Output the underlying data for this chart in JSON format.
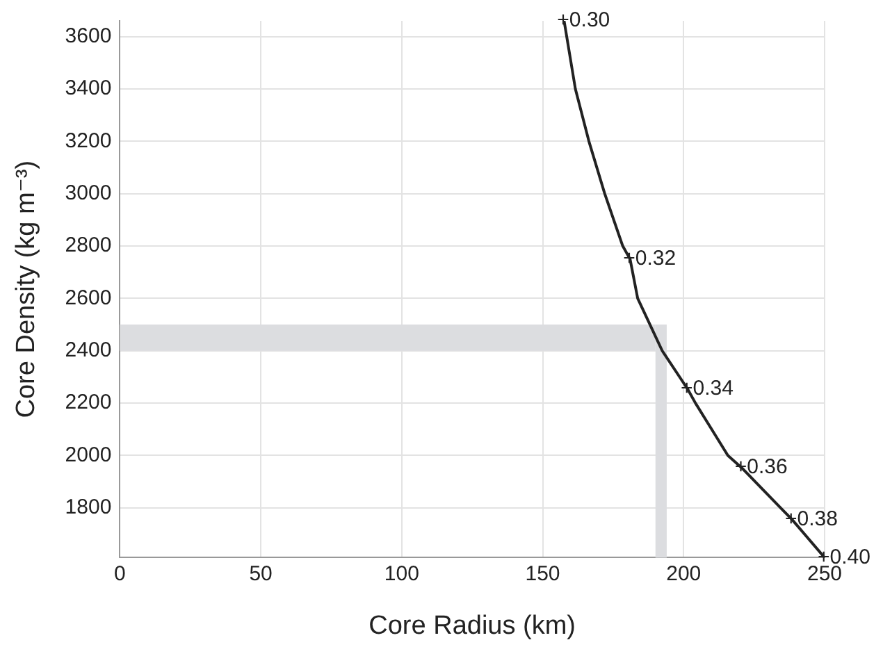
{
  "chart_data": {
    "type": "line",
    "xlabel": "Core Radius (km)",
    "ylabel": "Core Density (kg m⁻³)",
    "xlim": [
      0,
      250
    ],
    "xticks": [
      0,
      50,
      100,
      150,
      200,
      250
    ],
    "ylim": [
      1610,
      3660
    ],
    "yticks": [
      1800,
      2000,
      2200,
      2400,
      2600,
      2800,
      3000,
      3200,
      3400,
      3600
    ],
    "grid": true,
    "marker": "none",
    "line_style": "solid",
    "series": [
      {
        "color": "#222222",
        "x": [
          157.6,
          161.6,
          166.4,
          172,
          178.4,
          181,
          183.7,
          192.4,
          201.4,
          204.2,
          215.7,
          220.6,
          234.4,
          238.4,
          250
        ],
        "values": [
          3660,
          3400,
          3200,
          3000,
          2800,
          2750,
          2600,
          2400,
          2254,
          2200,
          2000,
          1953,
          1800,
          1756,
          1610
        ]
      }
    ],
    "bands": [
      {
        "axis": "y",
        "from": 2400,
        "to": 2500,
        "color": "#dcdde0"
      },
      {
        "axis": "x",
        "from": 190,
        "to": 194,
        "color": "#dcdde0"
      }
    ],
    "annotations": [
      {
        "text": "+0.30",
        "x": 157.6,
        "y": 3660
      },
      {
        "text": "+0.32",
        "x": 181,
        "y": 2750
      },
      {
        "text": "+0.34",
        "x": 201.4,
        "y": 2254
      },
      {
        "text": "+0.36",
        "x": 220.6,
        "y": 1953
      },
      {
        "text": "+0.38",
        "x": 238.4,
        "y": 1756
      },
      {
        "text": "+0.40",
        "x": 250,
        "y": 1610
      }
    ]
  }
}
